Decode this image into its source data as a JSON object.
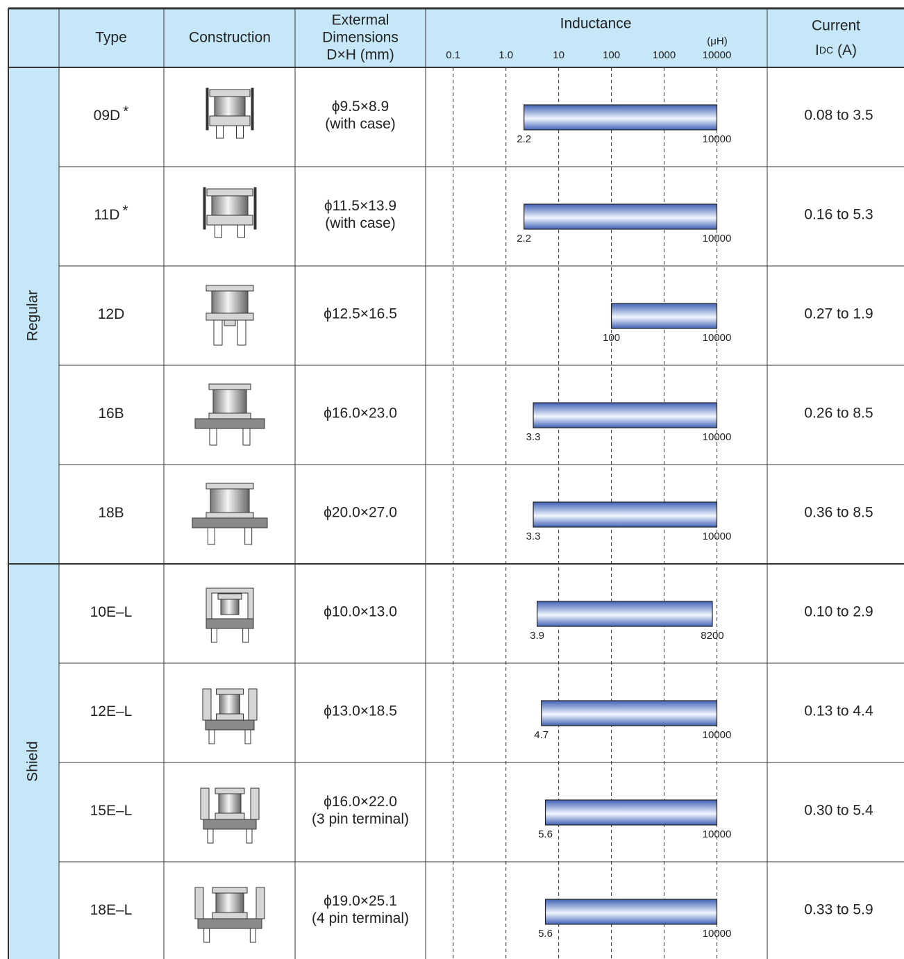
{
  "header": {
    "type": "Type",
    "construction": "Construction",
    "dimensions": [
      "Extermal",
      "Dimensions",
      "D×H (mm)"
    ],
    "inductance": "Inductance",
    "inductance_unit": "(μH)",
    "current": "Current",
    "current_symbol": "I",
    "current_subscript": "DC",
    "current_unit": "(A)"
  },
  "inductance_axis": {
    "scale": "log",
    "xlim": [
      0.03,
      90000
    ],
    "xticks": [
      0.1,
      {
        "value": 1,
        "label": "1.0"
      },
      10,
      100,
      1000,
      10000
    ],
    "bar_color": "#3f62b5"
  },
  "groups": [
    {
      "label": "Regular",
      "rows": [
        {
          "type": "09D",
          "mark": "*",
          "dimensions": [
            "ϕ9.5×8.9",
            "(with case)"
          ],
          "inductance": {
            "min": 2.2,
            "max": 10000
          },
          "current": "0.08 to 3.5"
        },
        {
          "type": "11D",
          "mark": "*",
          "dimensions": [
            "ϕ11.5×13.9",
            "(with case)"
          ],
          "inductance": {
            "min": 2.2,
            "max": 10000
          },
          "current": "0.16 to 5.3"
        },
        {
          "type": "12D",
          "dimensions": [
            "ϕ12.5×16.5"
          ],
          "inductance": {
            "min": 100,
            "max": 10000
          },
          "current": "0.27 to 1.9"
        },
        {
          "type": "16B",
          "dimensions": [
            "ϕ16.0×23.0"
          ],
          "inductance": {
            "min": 3.3,
            "max": 10000
          },
          "current": "0.26 to 8.5"
        },
        {
          "type": "18B",
          "dimensions": [
            "ϕ20.0×27.0"
          ],
          "inductance": {
            "min": 3.3,
            "max": 10000
          },
          "current": "0.36 to 8.5"
        }
      ]
    },
    {
      "label": "Shield",
      "rows": [
        {
          "type": "10E–L",
          "dimensions": [
            "ϕ10.0×13.0"
          ],
          "inductance": {
            "min": 3.9,
            "max": 8200
          },
          "current": "0.10 to 2.9"
        },
        {
          "type": "12E–L",
          "dimensions": [
            "ϕ13.0×18.5"
          ],
          "inductance": {
            "min": 4.7,
            "max": 10000
          },
          "current": "0.13 to 4.4"
        },
        {
          "type": "15E–L",
          "dimensions": [
            "ϕ16.0×22.0",
            "(3 pin terminal)"
          ],
          "inductance": {
            "min": 5.6,
            "max": 10000
          },
          "current": "0.30 to 5.4"
        },
        {
          "type": "18E–L",
          "dimensions": [
            "ϕ19.0×25.1",
            "(4 pin terminal)"
          ],
          "inductance": {
            "min": 5.6,
            "max": 10000
          },
          "current": "0.33 to 5.9"
        }
      ]
    }
  ]
}
